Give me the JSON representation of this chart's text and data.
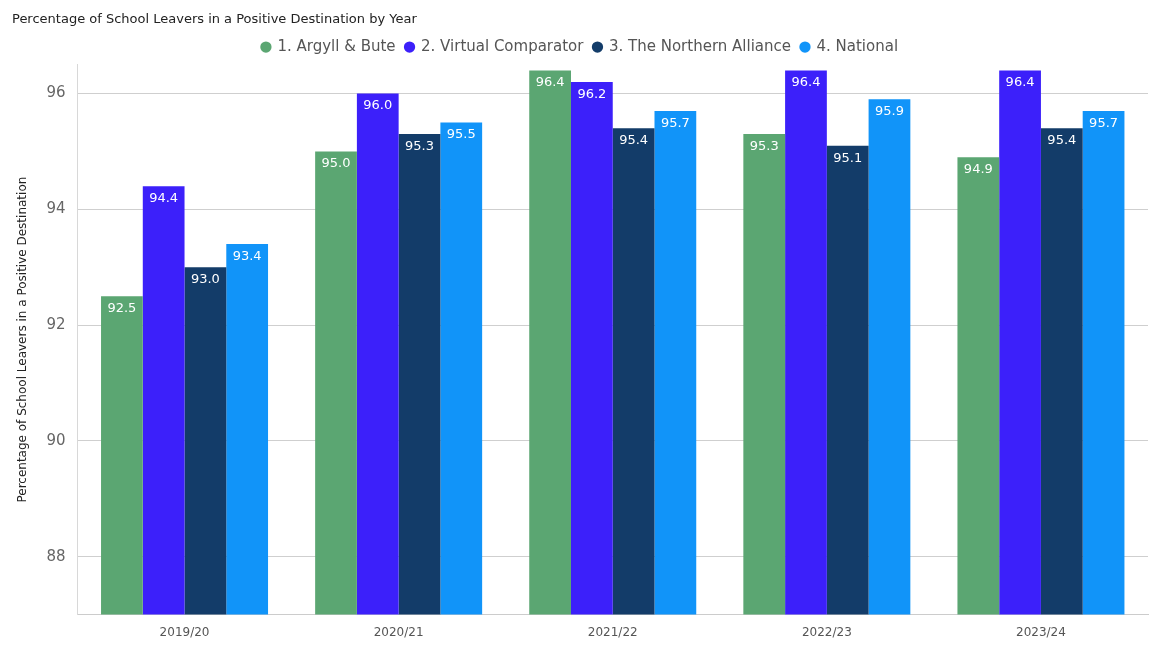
{
  "chart_data": {
    "type": "bar",
    "title": "Percentage of School Leavers in a Positive Destination by Year",
    "ylabel": "Percentage of School Leavers in a Positive Destination",
    "categories": [
      "2019/20",
      "2020/21",
      "2021/22",
      "2022/23",
      "2023/24"
    ],
    "series": [
      {
        "name": "1. Argyll & Bute",
        "color": "#5ba672",
        "values": [
          92.5,
          95.0,
          96.4,
          95.3,
          94.9
        ],
        "value_labels": [
          "92.5",
          "95.0",
          "96.4",
          "95.3",
          "94.9"
        ]
      },
      {
        "name": "2. Virtual Comparator",
        "color": "#3c20fa",
        "values": [
          94.4,
          96.0,
          96.2,
          96.4,
          96.4
        ],
        "value_labels": [
          "94.4",
          "96.0",
          "96.2",
          "96.4",
          "96.4"
        ]
      },
      {
        "name": "3. The Northern Alliance",
        "color": "#133c69",
        "values": [
          93.0,
          95.3,
          95.4,
          95.1,
          95.4
        ],
        "value_labels": [
          "93.0",
          "95.3",
          "95.4",
          "95.1",
          "95.4"
        ]
      },
      {
        "name": "4. National",
        "color": "#1194f9",
        "values": [
          93.4,
          95.5,
          95.7,
          95.9,
          95.7
        ],
        "value_labels": [
          "93.4",
          "95.5",
          "95.7",
          "95.9",
          "95.7"
        ]
      }
    ],
    "ylim": [
      87,
      96.5
    ],
    "yticks": [
      88,
      90,
      92,
      94,
      96
    ],
    "grid": "y",
    "legend": "top",
    "marker": "circle"
  }
}
